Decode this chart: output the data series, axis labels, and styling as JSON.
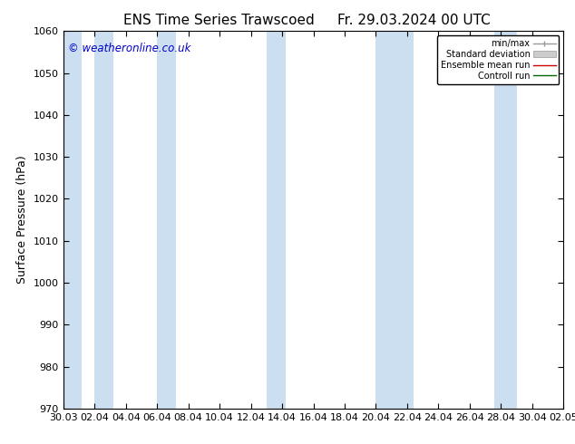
{
  "title_left": "ENS Time Series Trawscoed",
  "title_right": "Fr. 29.03.2024 00 UTC",
  "ylabel": "Surface Pressure (hPa)",
  "ylim": [
    970,
    1060
  ],
  "yticks": [
    970,
    980,
    990,
    1000,
    1010,
    1020,
    1030,
    1040,
    1050,
    1060
  ],
  "x_labels": [
    "30.03",
    "02.04",
    "04.04",
    "06.04",
    "08.04",
    "10.04",
    "12.04",
    "14.04",
    "16.04",
    "18.04",
    "20.04",
    "22.04",
    "24.04",
    "26.04",
    "28.04",
    "30.04",
    "02.05"
  ],
  "watermark": "© weatheronline.co.uk",
  "legend_entries": [
    "min/max",
    "Standard deviation",
    "Ensemble mean run",
    "Controll run"
  ],
  "bg_color": "#ffffff",
  "plot_bg_color": "#ffffff",
  "band_color": "#ccdff0",
  "title_fontsize": 11,
  "label_fontsize": 9,
  "tick_fontsize": 8,
  "watermark_color": "#0000cc"
}
